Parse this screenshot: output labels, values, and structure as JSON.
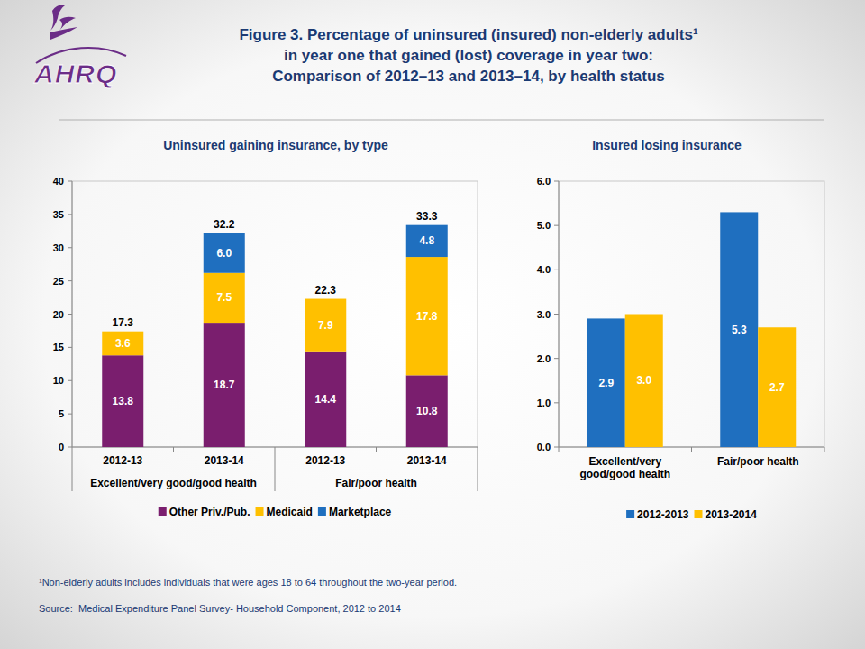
{
  "page": {
    "logo": "AHRQ",
    "title": [
      "Figure 3. Percentage of uninsured (insured) non-elderly adults¹",
      "in year one that gained (lost) coverage in year two:",
      "Comparison of 2012–13 and 2013–14, by health status"
    ],
    "footnote": "¹Non-elderly adults includes individuals that were ages 18 to 64 throughout the two-year period.",
    "source": "Source:  Medical Expenditure Panel Survey- Household Component, 2012 to 2014"
  },
  "chart_data": [
    {
      "type": "bar",
      "stacked": true,
      "title": "Uninsured gaining insurance, by type",
      "categories": [
        "2012-13",
        "2013-14",
        "2012-13",
        "2013-14"
      ],
      "category_groups": [
        "Excellent/very good/good health",
        "Excellent/very good/good health",
        "Fair/poor health",
        "Fair/poor health"
      ],
      "series": [
        {
          "name": "Other Priv./Pub.",
          "color": "#7a1e6e",
          "values": [
            13.8,
            18.7,
            14.4,
            10.8
          ]
        },
        {
          "name": "Medicaid",
          "color": "#ffc000",
          "values": [
            3.6,
            7.5,
            7.9,
            17.8
          ]
        },
        {
          "name": "Marketplace",
          "color": "#1f6fbf",
          "values": [
            null,
            6.0,
            null,
            4.8
          ],
          "value_labels": [
            null,
            "6.0",
            null,
            "4.8"
          ]
        }
      ],
      "totals": [
        17.3,
        32.2,
        22.3,
        33.3
      ],
      "ylim": [
        0,
        40
      ],
      "yticks": [
        0,
        5,
        10,
        15,
        20,
        25,
        30,
        35,
        40
      ],
      "grid": false,
      "data_labels": true,
      "legend": "bottom"
    },
    {
      "type": "bar",
      "title": "Insured losing insurance",
      "categories": [
        "Excellent/very good/good health",
        "Fair/poor health"
      ],
      "series": [
        {
          "name": "2012-2013",
          "color": "#1f6fbf",
          "values": [
            2.9,
            5.3
          ]
        },
        {
          "name": "2013-2014",
          "color": "#ffc000",
          "values": [
            3.0,
            2.7
          ],
          "value_labels": [
            "3.0",
            "2.7"
          ]
        }
      ],
      "ylim": [
        0,
        6
      ],
      "yticks": [
        {
          "value": 0,
          "label": "0.0"
        },
        {
          "value": 1,
          "label": "1.0"
        },
        {
          "value": 2,
          "label": "2.0"
        },
        {
          "value": 3,
          "label": "3.0"
        },
        {
          "value": 4,
          "label": "4.0"
        },
        {
          "value": 5,
          "label": "5.0"
        },
        {
          "value": 6,
          "label": "6.0"
        }
      ],
      "grid": false,
      "data_labels": true,
      "legend": "bottom"
    }
  ]
}
